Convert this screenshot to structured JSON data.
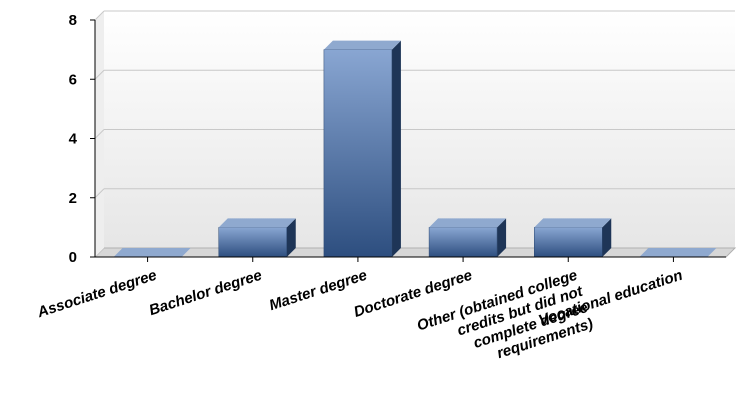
{
  "chart_data": {
    "type": "bar",
    "categories": [
      "Associate degree",
      "Bachelor degree",
      "Master degree",
      "Doctorate degree",
      "Other (obtained college credits but did not complete degree requirements)",
      "Vocational education"
    ],
    "category_lines": [
      [
        "Associate degree"
      ],
      [
        "Bachelor degree"
      ],
      [
        "Master degree"
      ],
      [
        "Doctorate degree"
      ],
      [
        "Other (obtained college",
        "credits but did not",
        "complete degree",
        "requirements)"
      ],
      [
        "Vocational education"
      ]
    ],
    "values": [
      0,
      1,
      7,
      1,
      1,
      0
    ],
    "ylim": [
      0,
      8
    ],
    "yticks": [
      0,
      2,
      4,
      6,
      8
    ],
    "title": "",
    "xlabel": "",
    "ylabel": "",
    "grid": true,
    "bar_color": "#4a6fa5",
    "style": "3d"
  }
}
